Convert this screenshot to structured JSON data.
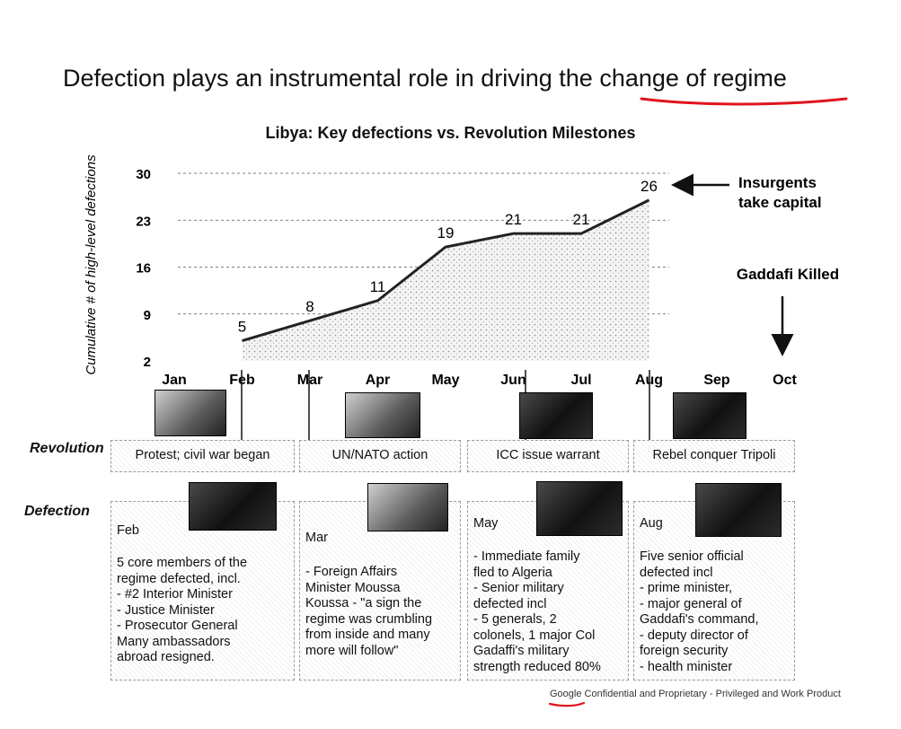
{
  "headline": {
    "prefix": "Defection plays an instrumental role in driving the ",
    "highlight": "change of regime"
  },
  "chart_data": {
    "type": "area",
    "title": "Libya: Key defections vs. Revolution Milestones",
    "ylabel": "Cumulative # of high-level defections",
    "categories": [
      "Jan",
      "Feb",
      "Mar",
      "Apr",
      "May",
      "Jun",
      "Jul",
      "Aug",
      "Sep",
      "Oct"
    ],
    "points": [
      {
        "x": "Feb",
        "y": 5
      },
      {
        "x": "Mar",
        "y": 8
      },
      {
        "x": "Apr",
        "y": 11
      },
      {
        "x": "May",
        "y": 19
      },
      {
        "x": "Jun",
        "y": 21
      },
      {
        "x": "Jul",
        "y": 21
      },
      {
        "x": "Aug",
        "y": 26
      }
    ],
    "yticks": [
      2,
      9,
      16,
      23,
      30
    ],
    "ylim": [
      2,
      30
    ],
    "grid": true,
    "annotations": [
      {
        "text": "Insurgents take capital",
        "lines": [
          "Insurgents",
          "take capital"
        ],
        "month": "Aug"
      },
      {
        "text": "Gaddafi Killed",
        "month": "Oct"
      }
    ]
  },
  "rows": {
    "revolution": "Revolution",
    "defection": "Defection"
  },
  "revolution": [
    {
      "month": "Feb",
      "text": "Protest; civil war began"
    },
    {
      "month": "Mar",
      "text": "UN/NATO action"
    },
    {
      "month": "Jun",
      "text": "ICC issue warrant"
    },
    {
      "month": "Aug",
      "text": "Rebel conquer Tripoli"
    }
  ],
  "defection": [
    {
      "month": "Feb",
      "lines": [
        "5 core members of the",
        "regime defected, incl.",
        "- #2 Interior Minister",
        "- Justice Minister",
        "- Prosecutor General",
        "Many ambassadors",
        "abroad resigned."
      ]
    },
    {
      "month": "Mar",
      "lines": [
        "- Foreign Affairs",
        "Minister Moussa",
        "Koussa - \"a sign the",
        "regime was crumbling",
        "from inside and many",
        "more will follow\""
      ]
    },
    {
      "month": "May",
      "lines": [
        "- Immediate family",
        "fled to Algeria",
        "- Senior military",
        "defected incl",
        "- 5 generals, 2",
        "colonels, 1 major Col",
        "Gadaffi's military",
        "strength reduced 80%"
      ]
    },
    {
      "month": "Aug",
      "lines": [
        "Five senior official",
        "defected incl",
        "- prime minister,",
        "- major general of",
        "Gaddafi's command,",
        "- deputy director of",
        "foreign security",
        "- health minister"
      ]
    }
  ],
  "footer": {
    "brand": "Google",
    "rest": " Confidential and Proprietary - Privileged and Work Product"
  },
  "colors": {
    "annotation_red": "#e0141e",
    "ink": "#111111"
  }
}
